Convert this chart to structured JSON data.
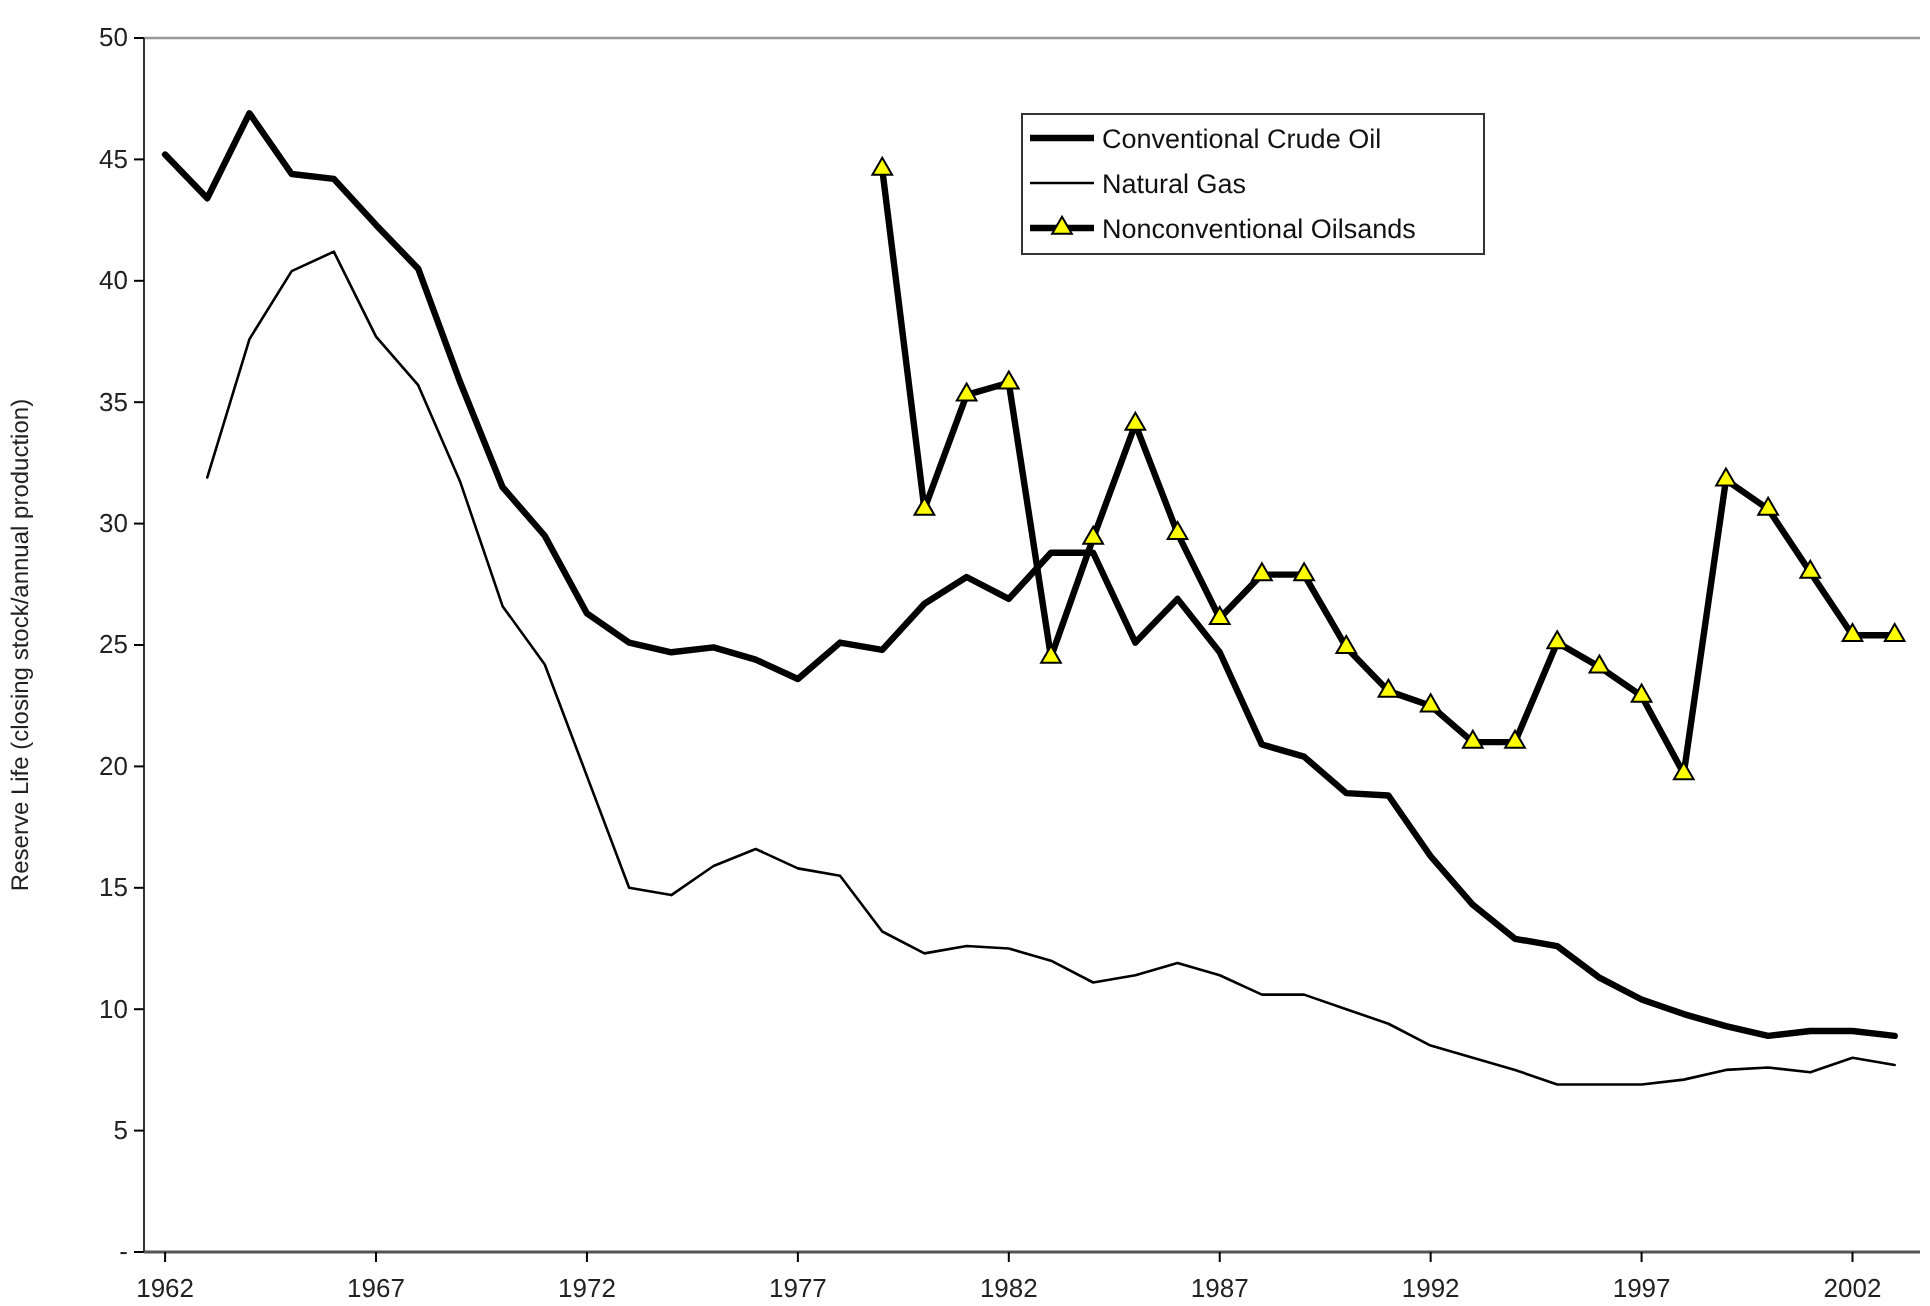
{
  "chart_data": {
    "type": "line",
    "ylabel": "Reserve Life (closing stock/annual production)",
    "xlim": [
      1961.5,
      2003.6
    ],
    "xticks": [
      1962,
      1967,
      1972,
      1977,
      1982,
      1987,
      1992,
      1997,
      2002
    ],
    "ylim": [
      0,
      50
    ],
    "yticks": [
      {
        "value": 0,
        "label": "-"
      },
      5,
      10,
      15,
      20,
      25,
      30,
      35,
      40,
      45,
      50
    ],
    "grid": false,
    "legend": "top right",
    "line_style": "solid",
    "series": [
      {
        "name": "Conventional Crude Oil",
        "color": "#000000",
        "marker": "none",
        "x": [
          1962,
          1963,
          1964,
          1965,
          1966,
          1967,
          1968,
          1969,
          1970,
          1971,
          1972,
          1973,
          1974,
          1975,
          1976,
          1977,
          1978,
          1979,
          1980,
          1981,
          1982,
          1983,
          1984,
          1985,
          1986,
          1987,
          1988,
          1989,
          1990,
          1991,
          1992,
          1993,
          1994,
          1995,
          1996,
          1997,
          1998,
          1999,
          2000,
          2001,
          2002,
          2003
        ],
        "values": [
          45.2,
          43.4,
          46.9,
          44.4,
          44.2,
          42.3,
          40.5,
          35.8,
          31.5,
          29.5,
          26.3,
          25.1,
          24.7,
          24.9,
          24.4,
          23.6,
          25.1,
          24.8,
          26.7,
          27.8,
          26.9,
          28.8,
          28.8,
          25.1,
          26.9,
          24.7,
          20.9,
          20.4,
          18.9,
          18.8,
          16.3,
          14.3,
          12.9,
          12.6,
          11.3,
          10.4,
          9.8,
          9.3,
          8.9,
          9.1,
          9.1,
          8.9
        ]
      },
      {
        "name": "Natural Gas",
        "color": "#000000",
        "marker": "none",
        "x": [
          1963,
          1964,
          1965,
          1966,
          1967,
          1968,
          1969,
          1970,
          1971,
          1972,
          1973,
          1974,
          1975,
          1976,
          1977,
          1978,
          1979,
          1980,
          1981,
          1982,
          1983,
          1984,
          1985,
          1986,
          1987,
          1988,
          1989,
          1990,
          1991,
          1992,
          1993,
          1994,
          1995,
          1996,
          1997,
          1998,
          1999,
          2000,
          2001,
          2002,
          2003
        ],
        "values": [
          31.9,
          37.6,
          40.4,
          41.2,
          37.7,
          35.7,
          31.7,
          26.6,
          24.2,
          19.6,
          15.0,
          14.7,
          15.9,
          16.6,
          15.8,
          15.5,
          13.2,
          12.3,
          12.6,
          12.5,
          12.0,
          11.1,
          11.4,
          11.9,
          11.4,
          10.6,
          10.6,
          10.0,
          9.4,
          8.5,
          8.0,
          7.5,
          6.9,
          6.9,
          6.9,
          7.1,
          7.5,
          7.6,
          7.4,
          8.0,
          7.7
        ]
      },
      {
        "name": "Nonconventional Oilsands",
        "color": "#000000",
        "marker": "triangle",
        "x": [
          1979,
          1980,
          1981,
          1982,
          1983,
          1984,
          1985,
          1986,
          1987,
          1988,
          1989,
          1990,
          1991,
          1992,
          1993,
          1994,
          1995,
          1996,
          1997,
          1998,
          1999,
          2000,
          2001,
          2002,
          2003
        ],
        "values": [
          44.6,
          30.6,
          35.3,
          35.8,
          24.5,
          29.4,
          34.1,
          29.6,
          26.1,
          27.9,
          27.9,
          24.9,
          23.1,
          22.5,
          21.0,
          21.0,
          25.1,
          24.1,
          22.9,
          19.7,
          31.8,
          30.6,
          28.0,
          25.4,
          25.4
        ]
      }
    ]
  }
}
